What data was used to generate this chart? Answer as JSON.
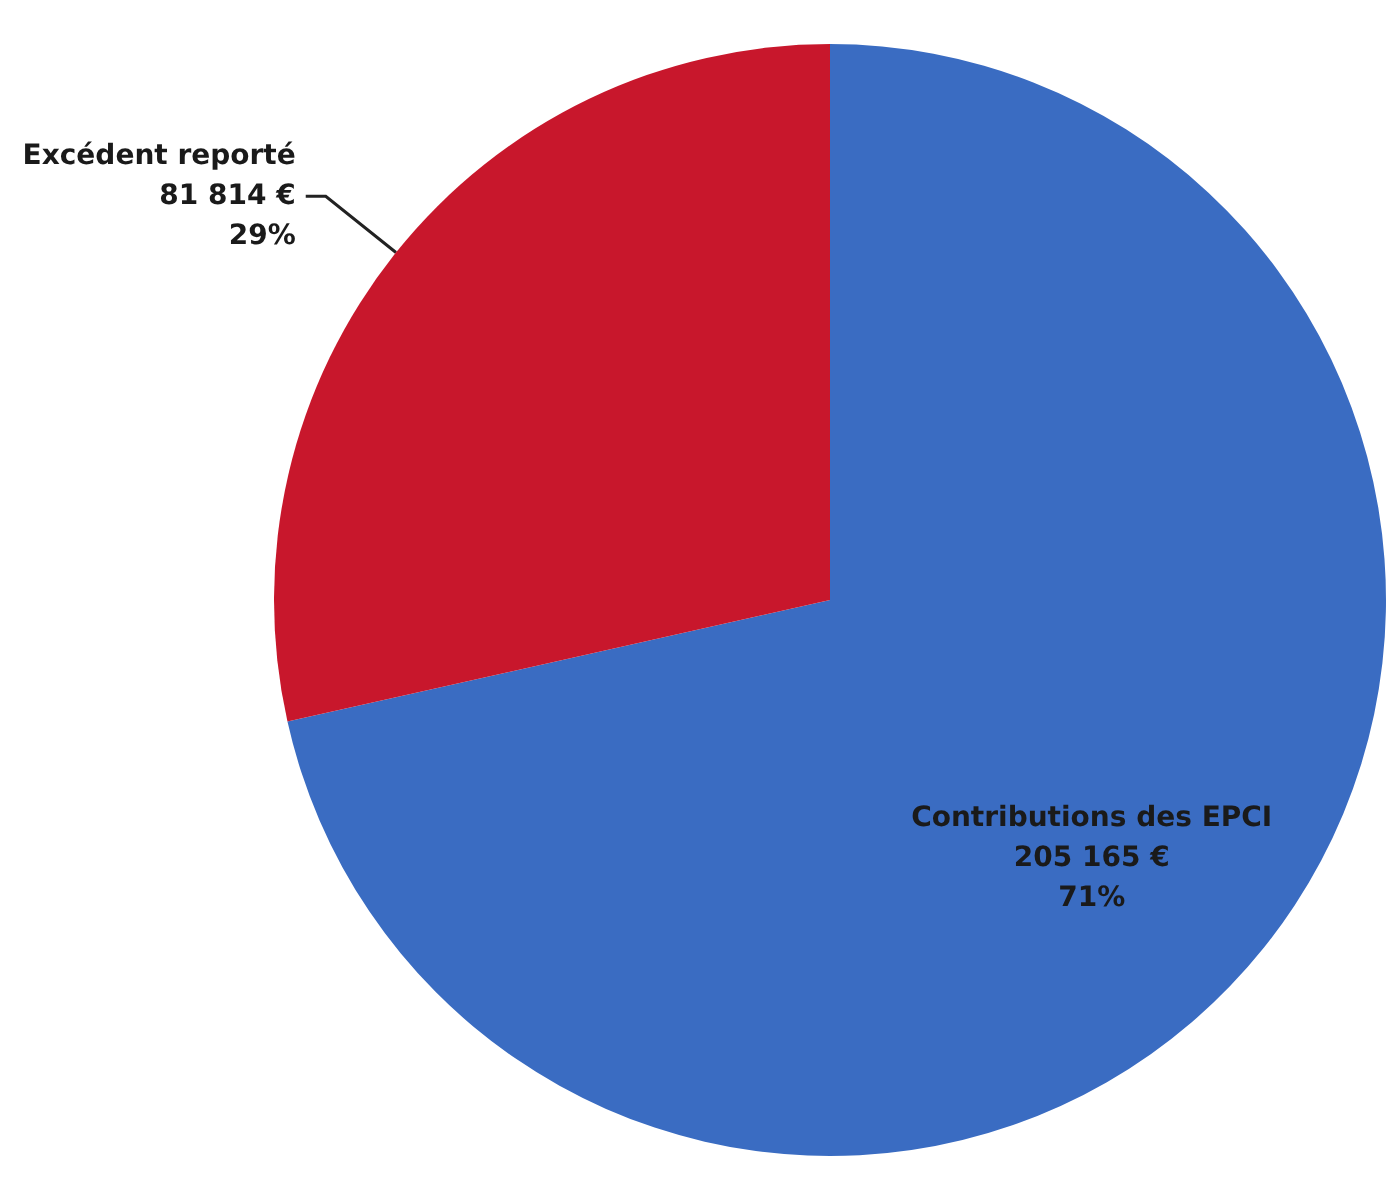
{
  "chart_data": {
    "type": "pie",
    "categories": [
      "Contributions des EPCI",
      "Excédent reporté"
    ],
    "values": [
      205165,
      81814
    ],
    "colors": [
      "#3a6cc2",
      "#c8172c"
    ],
    "value_labels": [
      "205 165 €\n71%",
      "81 814 €\n29%"
    ]
  }
}
